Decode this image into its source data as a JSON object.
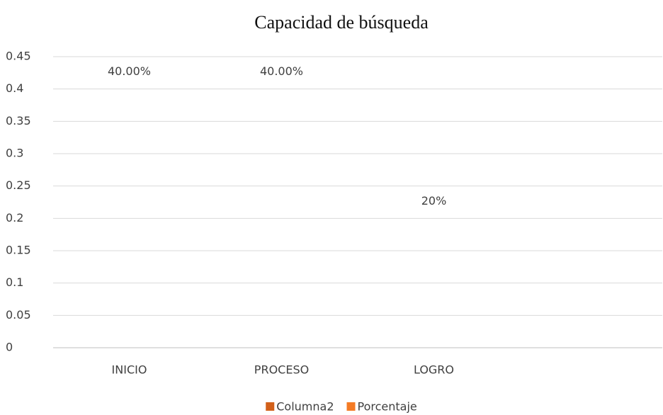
{
  "chart_data": {
    "type": "bar",
    "title": "Capacidad de búsqueda",
    "categories": [
      "INICIO",
      "PROCESO",
      "LOGRO",
      null
    ],
    "series": [
      {
        "name": "Columna2",
        "color": "#d2601a",
        "values": [
          null,
          null,
          null,
          null
        ]
      },
      {
        "name": "Porcentaje",
        "color": "#f47b25",
        "values": [
          0.4,
          0.4,
          0.2,
          null
        ],
        "value_labels": [
          "40.00%",
          "40.00%",
          "20%",
          null
        ]
      }
    ],
    "ylim": [
      0,
      0.45
    ],
    "yticks": [
      0,
      0.05,
      0.1,
      0.15,
      0.2,
      0.25,
      0.3,
      0.35,
      0.4,
      0.45
    ],
    "grid": true,
    "legend": "bottom"
  }
}
